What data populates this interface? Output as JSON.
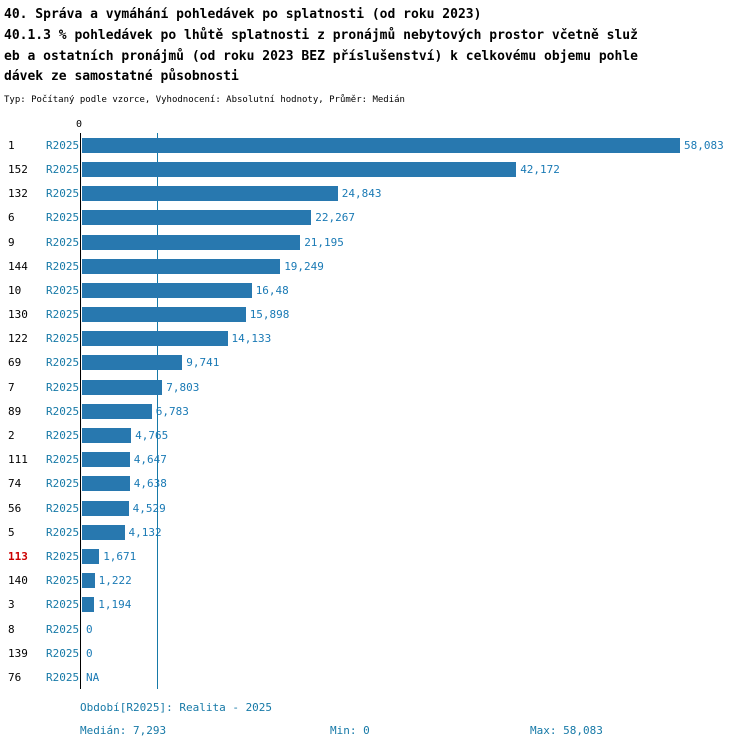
{
  "header": {
    "line1": "40. Správa a vymáhání pohledávek po splatnosti (od roku 2023)",
    "line2": "40.1.3 % pohledávek po lhůtě splatnosti z pronájmů nebytových prostor včetně služeb a ostatních pronájmů (od roku 2023 BEZ příslušenství) k celkovému objemu pohledávek ze samostatné působnosti",
    "meta": "Typ: Počítaný podle vzorce, Vyhodnocení: Absolutní hodnoty, Průměr: Medián"
  },
  "chart_data": {
    "type": "bar",
    "orientation": "horizontal",
    "series_name": "R2025",
    "axis_zero_label": "0",
    "max_value": 58.083,
    "median_value": 7.293,
    "xlim": [
      0,
      58.083
    ],
    "legend_position": "none",
    "grid": false,
    "categories": [
      "1",
      "152",
      "132",
      "6",
      "9",
      "144",
      "10",
      "130",
      "122",
      "69",
      "7",
      "89",
      "2",
      "111",
      "74",
      "56",
      "5",
      "113",
      "140",
      "3",
      "8",
      "139",
      "76"
    ],
    "rows": [
      {
        "id": "1",
        "label": "58,083",
        "value": 58.083,
        "highlight": false
      },
      {
        "id": "152",
        "label": "42,172",
        "value": 42.172,
        "highlight": false
      },
      {
        "id": "132",
        "label": "24,843",
        "value": 24.843,
        "highlight": false
      },
      {
        "id": "6",
        "label": "22,267",
        "value": 22.267,
        "highlight": false
      },
      {
        "id": "9",
        "label": "21,195",
        "value": 21.195,
        "highlight": false
      },
      {
        "id": "144",
        "label": "19,249",
        "value": 19.249,
        "highlight": false
      },
      {
        "id": "10",
        "label": "16,48",
        "value": 16.48,
        "highlight": false
      },
      {
        "id": "130",
        "label": "15,898",
        "value": 15.898,
        "highlight": false
      },
      {
        "id": "122",
        "label": "14,133",
        "value": 14.133,
        "highlight": false
      },
      {
        "id": "69",
        "label": "9,741",
        "value": 9.741,
        "highlight": false
      },
      {
        "id": "7",
        "label": "7,803",
        "value": 7.803,
        "highlight": false
      },
      {
        "id": "89",
        "label": "6,783",
        "value": 6.783,
        "highlight": false
      },
      {
        "id": "2",
        "label": "4,765",
        "value": 4.765,
        "highlight": false
      },
      {
        "id": "111",
        "label": "4,647",
        "value": 4.647,
        "highlight": false
      },
      {
        "id": "74",
        "label": "4,638",
        "value": 4.638,
        "highlight": false
      },
      {
        "id": "56",
        "label": "4,529",
        "value": 4.529,
        "highlight": false
      },
      {
        "id": "5",
        "label": "4,132",
        "value": 4.132,
        "highlight": false
      },
      {
        "id": "113",
        "label": "1,671",
        "value": 1.671,
        "highlight": true
      },
      {
        "id": "140",
        "label": "1,222",
        "value": 1.222,
        "highlight": false
      },
      {
        "id": "3",
        "label": "1,194",
        "value": 1.194,
        "highlight": false
      },
      {
        "id": "8",
        "label": "0",
        "value": 0,
        "highlight": false
      },
      {
        "id": "139",
        "label": "0",
        "value": 0,
        "highlight": false
      },
      {
        "id": "76",
        "label": "NA",
        "value": null,
        "highlight": false
      }
    ],
    "colors": {
      "bar": "#2878af",
      "value_text": "#1a7ab5",
      "period_text": "#1679a7",
      "highlight_text": "#cc0000",
      "median_line": "#1679a7",
      "axis_line": "#000000"
    }
  },
  "footer": {
    "period": "Období[R2025]: Realita - 2025",
    "median": "Medián: 7,293",
    "min": "Min: 0",
    "max": "Max: 58,083"
  }
}
